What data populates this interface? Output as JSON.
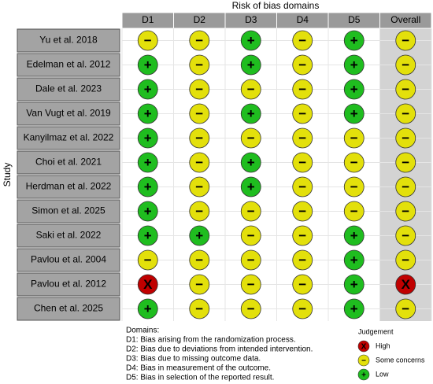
{
  "title": "Risk of bias domains",
  "y_axis_label": "Study",
  "columns": [
    "D1",
    "D2",
    "D3",
    "D4",
    "D5",
    "Overall"
  ],
  "rows": [
    {
      "study": "Yu et al. 2018",
      "cells": [
        "−",
        "−",
        "+",
        "−",
        "+",
        "−"
      ]
    },
    {
      "study": "Edelman et al. 2012",
      "cells": [
        "+",
        "−",
        "+",
        "−",
        "+",
        "−"
      ]
    },
    {
      "study": "Dale et al. 2023",
      "cells": [
        "+",
        "−",
        "−",
        "−",
        "+",
        "−"
      ]
    },
    {
      "study": "Van Vugt et al. 2019",
      "cells": [
        "+",
        "−",
        "+",
        "−",
        "+",
        "−"
      ]
    },
    {
      "study": "Kanyilmaz et al. 2022",
      "cells": [
        "+",
        "−",
        "−",
        "−",
        "−",
        "−"
      ]
    },
    {
      "study": "Choi et al. 2021",
      "cells": [
        "+",
        "−",
        "+",
        "−",
        "−",
        "−"
      ]
    },
    {
      "study": "Herdman et al. 2022",
      "cells": [
        "+",
        "−",
        "+",
        "−",
        "−",
        "−"
      ]
    },
    {
      "study": "Simon et al. 2025",
      "cells": [
        "+",
        "−",
        "−",
        "−",
        "−",
        "−"
      ]
    },
    {
      "study": "Saki et al. 2022",
      "cells": [
        "+",
        "+",
        "−",
        "−",
        "+",
        "−"
      ]
    },
    {
      "study": "Pavlou et al. 2004",
      "cells": [
        "−",
        "−",
        "−",
        "−",
        "+",
        "−"
      ]
    },
    {
      "study": "Pavlou et al. 2012",
      "cells": [
        "X",
        "−",
        "−",
        "−",
        "+",
        "X"
      ]
    },
    {
      "study": "Chen et al. 2025",
      "cells": [
        "+",
        "−",
        "−",
        "−",
        "+",
        "−"
      ]
    }
  ],
  "domains_note": {
    "title": "Domains:",
    "items": [
      "D1: Bias arising from the randomization process.",
      "D2: Bias due to deviations from intended intervention.",
      "D3: Bias due to missing outcome data.",
      "D4: Bias in measurement of the outcome.",
      "D5: Bias in selection of the reported result."
    ]
  },
  "legend": {
    "title": "Judgement",
    "items": [
      {
        "symbol": "X",
        "label": "High",
        "color": "#c00000"
      },
      {
        "symbol": "−",
        "label": "Some concerns",
        "color": "#e3e00b"
      },
      {
        "symbol": "+",
        "label": "Low",
        "color": "#1fbd1f"
      }
    ]
  }
}
